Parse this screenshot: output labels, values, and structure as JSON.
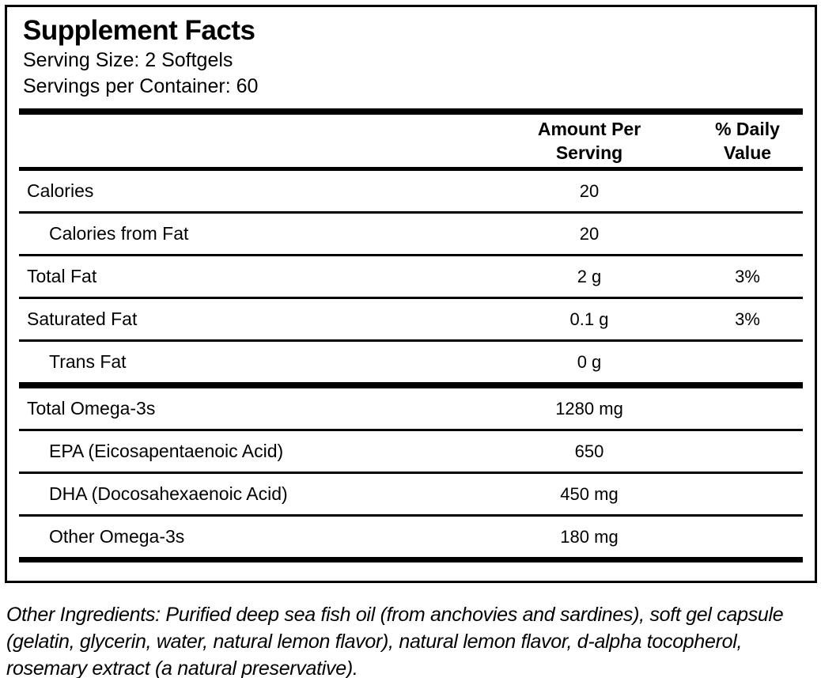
{
  "colors": {
    "background": "#ffffff",
    "text": "#000000",
    "rule": "#000000"
  },
  "label": {
    "title": "Supplement Facts",
    "serving_size": "Serving Size: 2 Softgels",
    "servings_per_container": "Servings per Container: 60",
    "columns": {
      "amount_header": "Amount Per\nServing",
      "daily_value_header": "% Daily\nValue"
    },
    "rows": [
      {
        "name": "Calories",
        "amount": "20",
        "dv": "",
        "indent": false,
        "divider_after": "thin"
      },
      {
        "name": "Calories from Fat",
        "amount": "20",
        "dv": "",
        "indent": true,
        "divider_after": "thin"
      },
      {
        "name": "Total Fat",
        "amount": "2 g",
        "dv": "3%",
        "indent": false,
        "divider_after": "thin"
      },
      {
        "name": "Saturated Fat",
        "amount": "0.1 g",
        "dv": "3%",
        "indent": false,
        "divider_after": "thin"
      },
      {
        "name": "Trans Fat",
        "amount": "0 g",
        "dv": "",
        "indent": true,
        "divider_after": "thick"
      },
      {
        "name": "Total Omega-3s",
        "amount": "1280 mg",
        "dv": "",
        "indent": false,
        "divider_after": "thin"
      },
      {
        "name": "EPA (Eicosapentaenoic Acid)",
        "amount": "650",
        "dv": "",
        "indent": true,
        "divider_after": "thin"
      },
      {
        "name": "DHA (Docosahexaenoic Acid)",
        "amount": "450 mg",
        "dv": "",
        "indent": true,
        "divider_after": "thin"
      },
      {
        "name": "Other Omega-3s",
        "amount": "180 mg",
        "dv": "",
        "indent": true,
        "divider_after": "final"
      }
    ],
    "other_ingredients": "Other Ingredients: Purified deep sea fish oil (from anchovies and sardines), soft gel capsule (gelatin, glycerin, water, natural lemon flavor), natural lemon flavor, d-alpha tocopherol, rosemary extract (a natural preservative)."
  }
}
